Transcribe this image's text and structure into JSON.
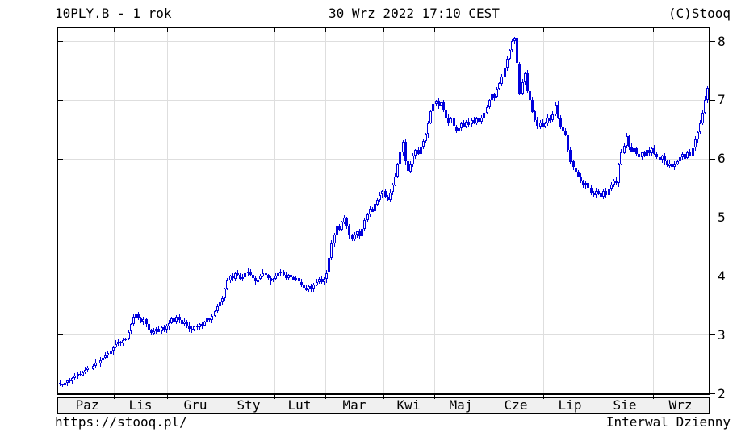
{
  "header": {
    "title": "10PLY.B - 1 rok",
    "datetime": "30 Wrz 2022 17:10 CEST",
    "copyright": "(C)Stooq"
  },
  "footer": {
    "url": "https://stooq.pl/",
    "interval": "Interwal Dzienny"
  },
  "colors": {
    "candle": "#0000dd",
    "candle_up_fill": "#ffffff",
    "grid": "#dedede",
    "axis": "#000000",
    "strip_bg": "#f0f0f0",
    "background": "#ffffff"
  },
  "chart_data": {
    "type": "candlestick",
    "title": "10PLY.B - 1 rok",
    "subtitle": "30 Wrz 2022 17:10 CEST",
    "interval": "Dzienny",
    "ylim": [
      2,
      8.22
    ],
    "y_ticks": [
      2,
      3,
      4,
      5,
      6,
      7,
      8
    ],
    "grid": true,
    "x_categories": [
      "Paz",
      "Lis",
      "Gru",
      "Sty",
      "Lut",
      "Mar",
      "Kwi",
      "Maj",
      "Cze",
      "Lip",
      "Sie",
      "Wrz"
    ],
    "months": [
      {
        "label": "",
        "closes": [
          2.15
        ]
      },
      {
        "label": "Paz",
        "closes": [
          2.14,
          2.18,
          2.22,
          2.2,
          2.26,
          2.3,
          2.33,
          2.31,
          2.36,
          2.4,
          2.44,
          2.42,
          2.47,
          2.52,
          2.5,
          2.56,
          2.6,
          2.64,
          2.68,
          2.72,
          2.78
        ]
      },
      {
        "label": "Lis",
        "closes": [
          2.84,
          2.88,
          2.86,
          2.91,
          2.94,
          3.05,
          3.18,
          3.3,
          3.35,
          3.28,
          3.22,
          3.26,
          3.18,
          3.08,
          3.02,
          3.06,
          3.1,
          3.05,
          3.12,
          3.08,
          3.15
        ]
      },
      {
        "label": "Gru",
        "closes": [
          3.2,
          3.28,
          3.22,
          3.3,
          3.25,
          3.18,
          3.22,
          3.15,
          3.1,
          3.08,
          3.14,
          3.12,
          3.18,
          3.15,
          3.22,
          3.28,
          3.25,
          3.32,
          3.4,
          3.48,
          3.55,
          3.62
        ]
      },
      {
        "label": "Sty",
        "closes": [
          3.78,
          3.92,
          4.0,
          3.96,
          4.05,
          4.02,
          3.95,
          3.98,
          4.05,
          4.08,
          4.02,
          3.96,
          3.9,
          3.94,
          4.0,
          4.05,
          4.02,
          3.97,
          3.92,
          3.95
        ]
      },
      {
        "label": "Lut",
        "closes": [
          4.0,
          4.05,
          4.08,
          4.02,
          3.97,
          4.02,
          3.98,
          3.93,
          3.96,
          3.9,
          3.85,
          3.8,
          3.76,
          3.82,
          3.78,
          3.85,
          3.9,
          3.95,
          3.9,
          3.95
        ]
      },
      {
        "label": "Mar",
        "closes": [
          4.05,
          4.3,
          4.55,
          4.7,
          4.85,
          4.78,
          4.92,
          5.0,
          4.85,
          4.7,
          4.62,
          4.7,
          4.76,
          4.68,
          4.8,
          4.95,
          5.05,
          5.15,
          5.1,
          5.22,
          5.3,
          5.38,
          5.44
        ]
      },
      {
        "label": "Kwi",
        "closes": [
          5.35,
          5.3,
          5.42,
          5.55,
          5.7,
          5.9,
          6.1,
          6.28,
          5.95,
          5.78,
          5.9,
          6.05,
          6.15,
          6.08,
          6.2,
          6.3,
          6.42,
          6.6,
          6.8,
          6.93
        ]
      },
      {
        "label": "Maj",
        "closes": [
          6.98,
          6.9,
          6.95,
          6.82,
          6.7,
          6.6,
          6.68,
          6.55,
          6.47,
          6.52,
          6.6,
          6.55,
          6.63,
          6.58,
          6.65,
          6.6,
          6.68,
          6.63,
          6.7,
          6.78,
          6.88
        ]
      },
      {
        "label": "Cze",
        "closes": [
          7.0,
          7.1,
          7.05,
          7.18,
          7.28,
          7.4,
          7.55,
          7.7,
          7.85,
          8.0,
          8.05,
          7.62,
          7.1,
          7.3,
          7.45,
          7.15,
          7.0,
          6.8,
          6.65,
          6.55,
          6.62,
          6.55
        ]
      },
      {
        "label": "Lip",
        "closes": [
          6.6,
          6.7,
          6.65,
          6.75,
          6.92,
          6.7,
          6.55,
          6.48,
          6.4,
          6.15,
          5.95,
          5.85,
          5.78,
          5.7,
          5.62,
          5.55,
          5.58,
          5.5,
          5.42,
          5.38,
          5.45
        ]
      },
      {
        "label": "Sie",
        "closes": [
          5.4,
          5.35,
          5.45,
          5.38,
          5.48,
          5.55,
          5.62,
          5.58,
          5.9,
          6.1,
          6.22,
          6.38,
          6.2,
          6.12,
          6.18,
          6.08,
          6.02,
          6.1,
          6.05,
          6.15,
          6.1,
          6.18
        ]
      },
      {
        "label": "Wrz",
        "closes": [
          6.08,
          6.02,
          5.98,
          6.05,
          5.95,
          5.88,
          5.92,
          5.86,
          5.9,
          5.95,
          6.02,
          6.08,
          6.0,
          6.1,
          6.05,
          6.18,
          6.32,
          6.45,
          6.6,
          6.78,
          7.0,
          7.2
        ]
      }
    ]
  }
}
